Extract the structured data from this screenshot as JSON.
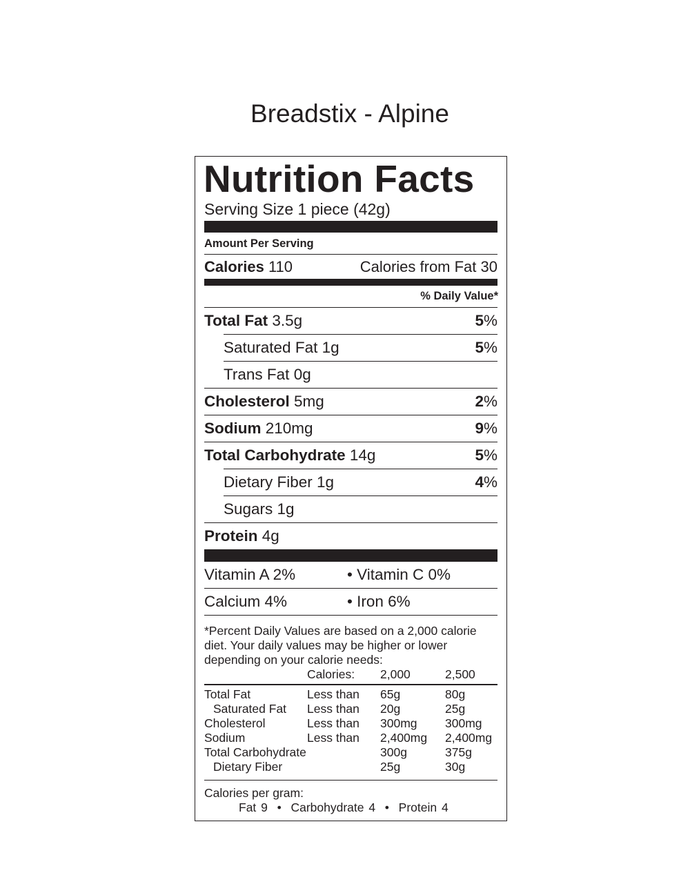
{
  "product_title": "Breadstix - Alpine",
  "label": {
    "heading": "Nutrition Facts",
    "serving_size": "Serving Size 1 piece (42g)",
    "amount_per_serving": "Amount Per Serving",
    "calories_label": "Calories",
    "calories_value": "110",
    "calories_from_fat": "Calories from Fat 30",
    "daily_value_header": "% Daily Value*",
    "nutrients": [
      {
        "name": "Total Fat",
        "amount": "3.5g",
        "dv": "5%",
        "bold": true,
        "indent": false
      },
      {
        "name": "Saturated Fat",
        "amount": "1g",
        "dv": "5%",
        "bold": false,
        "indent": true
      },
      {
        "name": "Trans Fat",
        "amount": "0g",
        "dv": "",
        "bold": false,
        "indent": true
      },
      {
        "name": "Cholesterol",
        "amount": "5mg",
        "dv": "2%",
        "bold": true,
        "indent": false
      },
      {
        "name": "Sodium",
        "amount": "210mg",
        "dv": "9%",
        "bold": true,
        "indent": false
      },
      {
        "name": "Total Carbohydrate",
        "amount": "14g",
        "dv": "5%",
        "bold": true,
        "indent": false
      },
      {
        "name": "Dietary Fiber",
        "amount": "1g",
        "dv": "4%",
        "bold": false,
        "indent": true
      },
      {
        "name": "Sugars",
        "amount": "1g",
        "dv": "",
        "bold": false,
        "indent": true
      },
      {
        "name": "Protein",
        "amount": "4g",
        "dv": "",
        "bold": true,
        "indent": false
      }
    ],
    "vitamins": [
      [
        "Vitamin A 2%",
        "• Vitamin C 0%"
      ],
      [
        "Calcium 4%",
        "• Iron 6%"
      ]
    ],
    "footnote": [
      "*Percent Daily Values are based on a 2,000 calorie",
      "diet. Your daily values may be higher or lower",
      "depending on your calorie needs:"
    ],
    "reference_header": [
      "",
      "Calories:",
      "2,000",
      "2,500"
    ],
    "reference_rows": [
      [
        "Total Fat",
        "Less than",
        "65g",
        "80g"
      ],
      [
        "  Saturated Fat",
        "Less than",
        "20g",
        "25g"
      ],
      [
        "Cholesterol",
        "Less than",
        "300mg",
        "300mg"
      ],
      [
        "Sodium",
        "Less than",
        "2,400mg",
        "2,400mg"
      ],
      [
        "Total Carbohydrate",
        "",
        "300g",
        "375g"
      ],
      [
        "  Dietary Fiber",
        "",
        "25g",
        "30g"
      ]
    ],
    "calories_per_gram_label": "Calories per gram:",
    "calories_per_gram": "Fat 9  •  Carbohydrate 4  •  Protein 4"
  }
}
